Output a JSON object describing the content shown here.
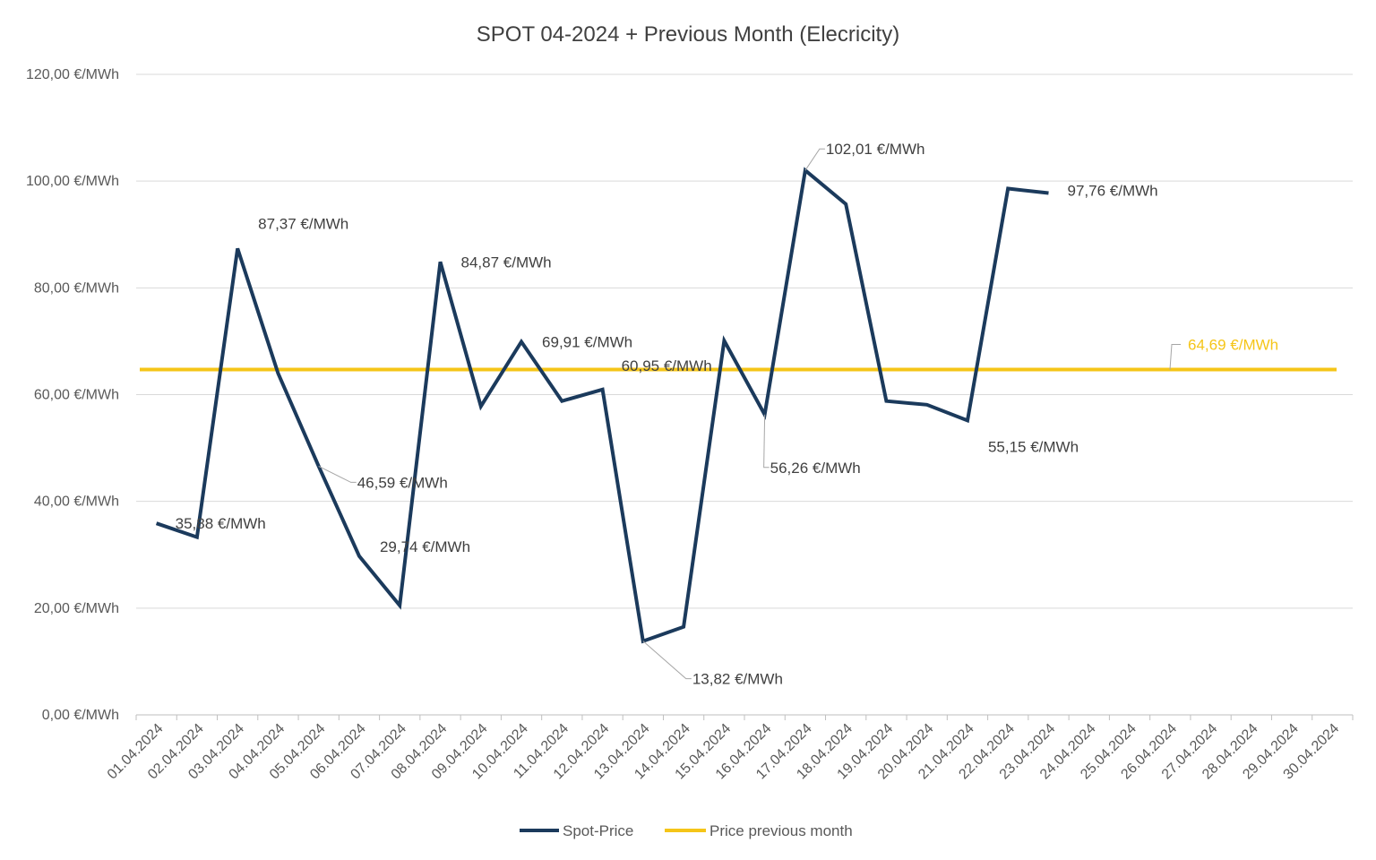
{
  "chart_data": {
    "type": "line",
    "title": "SPOT 04-2024 + Previous Month (Elecricity)",
    "xlabel": "",
    "ylabel": "",
    "ylim": [
      0,
      120
    ],
    "y_ticks": [
      0,
      20,
      40,
      60,
      80,
      100,
      120
    ],
    "y_tick_labels": [
      "0,00 €/MWh",
      "20,00 €/MWh",
      "40,00 €/MWh",
      "60,00 €/MWh",
      "80,00 €/MWh",
      "100,00 €/MWh",
      "120,00 €/MWh"
    ],
    "categories": [
      "01.04.2024",
      "02.04.2024",
      "03.04.2024",
      "04.04.2024",
      "05.04.2024",
      "06.04.2024",
      "07.04.2024",
      "08.04.2024",
      "09.04.2024",
      "10.04.2024",
      "11.04.2024",
      "12.04.2024",
      "13.04.2024",
      "14.04.2024",
      "15.04.2024",
      "16.04.2024",
      "17.04.2024",
      "18.04.2024",
      "19.04.2024",
      "20.04.2024",
      "21.04.2024",
      "22.04.2024",
      "23.04.2024",
      "24.04.2024",
      "25.04.2024",
      "26.04.2024",
      "27.04.2024",
      "28.04.2024",
      "29.04.2024",
      "30.04.2024"
    ],
    "series": [
      {
        "name": "Spot-Price",
        "color": "#1B3A5C",
        "values": [
          35.88,
          33.3,
          87.37,
          64.0,
          46.59,
          29.74,
          20.5,
          84.87,
          57.8,
          69.91,
          58.8,
          60.95,
          13.82,
          16.5,
          70.1,
          56.26,
          102.01,
          95.7,
          58.8,
          58.1,
          55.15,
          98.6,
          97.76,
          null,
          null,
          null,
          null,
          null,
          null,
          null
        ],
        "data_labels": [
          {
            "index": 0,
            "text": "35,88 €/MWh"
          },
          {
            "index": 2,
            "text": "87,37 €/MWh"
          },
          {
            "index": 4,
            "text": "46,59 €/MWh"
          },
          {
            "index": 5,
            "text": "29,74 €/MWh"
          },
          {
            "index": 7,
            "text": "84,87 €/MWh"
          },
          {
            "index": 9,
            "text": "69,91 €/MWh"
          },
          {
            "index": 11,
            "text": "60,95 €/MWh"
          },
          {
            "index": 12,
            "text": "13,82 €/MWh"
          },
          {
            "index": 15,
            "text": "56,26 €/MWh"
          },
          {
            "index": 16,
            "text": "102,01 €/MWh"
          },
          {
            "index": 20,
            "text": "55,15 €/MWh"
          },
          {
            "index": 22,
            "text": "97,76 €/MWh"
          }
        ]
      },
      {
        "name": "Price previous month",
        "color": "#F5C518",
        "constant": 64.69,
        "data_label": "64,69 €/MWh"
      }
    ],
    "legend_position": "bottom",
    "grid": true
  }
}
